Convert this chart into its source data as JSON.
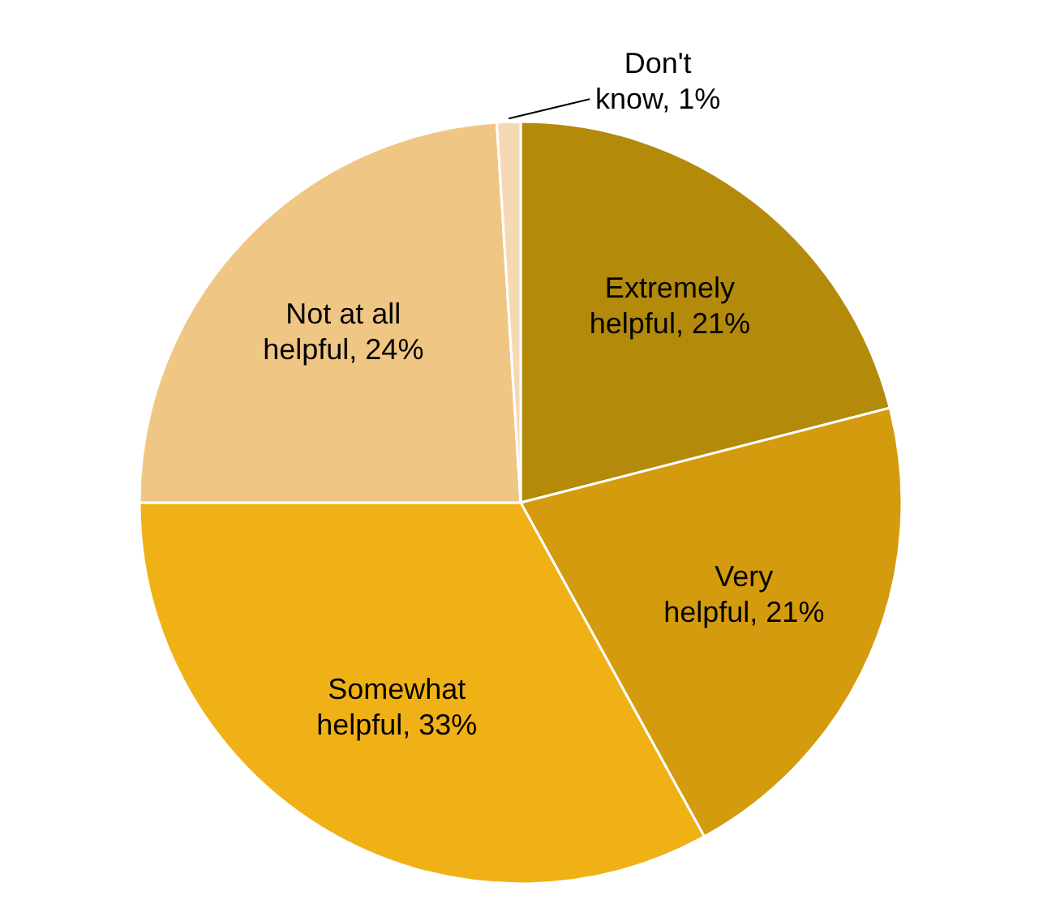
{
  "chart_data": {
    "type": "pie",
    "categories": [
      "Extremely helpful",
      "Very helpful",
      "Somewhat helpful",
      "Not at all helpful",
      "Don't know"
    ],
    "values": [
      21,
      21,
      33,
      24,
      1
    ],
    "colors": [
      "#b38a0a",
      "#d49b0e",
      "#efb116",
      "#f0c684",
      "#f5d9b5"
    ],
    "value_labels": [
      "21%",
      "21%",
      "33%",
      "24%",
      "1%"
    ],
    "legend": false
  }
}
